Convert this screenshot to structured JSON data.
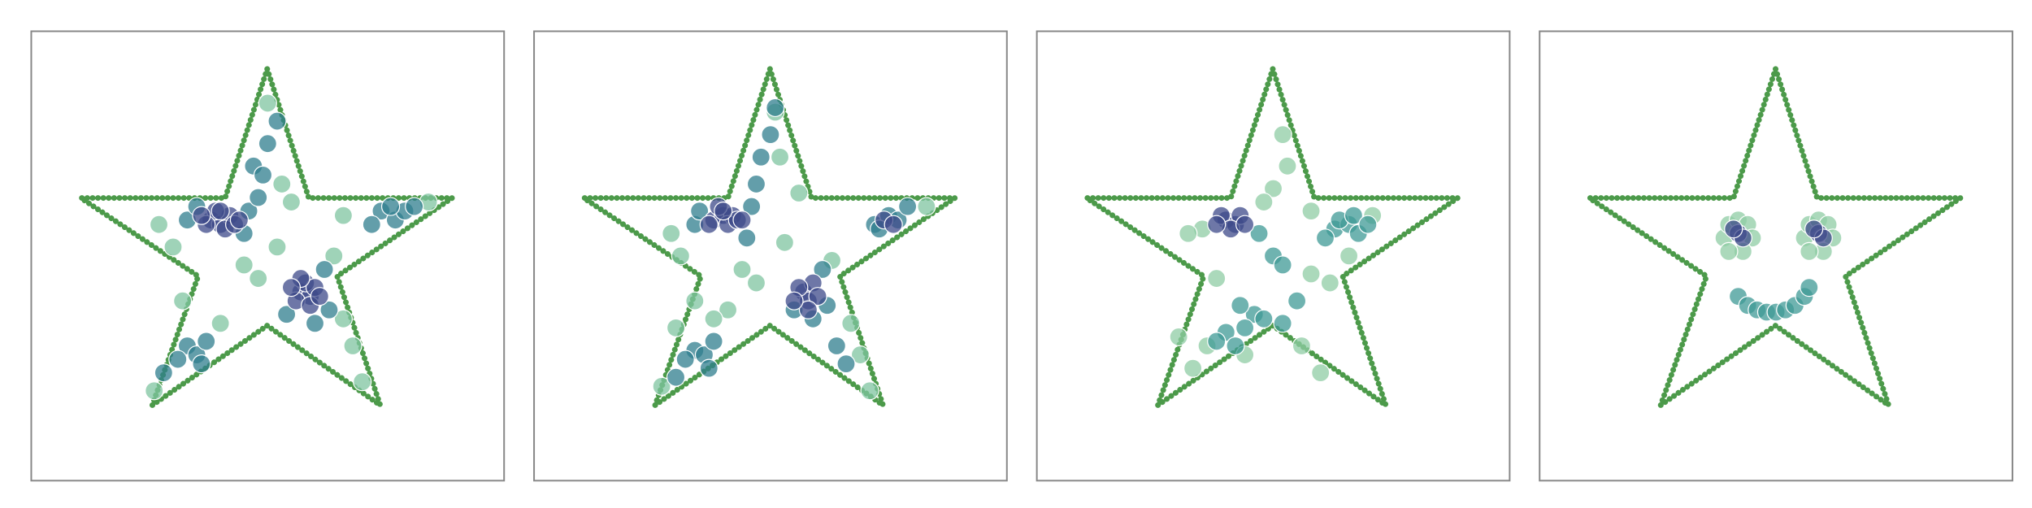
{
  "chart_data": [
    {
      "type": "scatter",
      "xlim": [
        0,
        100
      ],
      "ylim": [
        0,
        100
      ],
      "series": [
        {
          "type": "line",
          "color": "#4c9a4a",
          "x": [
            49.9,
            58.7,
            89.0,
            64.7,
            73.8,
            49.9,
            25.6,
            35.3,
            10.5,
            41.0,
            49.9
          ],
          "y": [
            91.6,
            62.9,
            62.9,
            45.5,
            16.8,
            34.5,
            16.8,
            45.5,
            62.9,
            62.9,
            91.6
          ]
        },
        {
          "color": "#7fc4a0",
          "x": [
            50,
            53,
            30,
            27,
            45,
            48,
            66,
            68,
            70,
            64,
            84,
            32,
            40,
            26,
            52,
            55,
            66
          ],
          "y": [
            84,
            66,
            52,
            57,
            48,
            45,
            36,
            30,
            22,
            50,
            62,
            40,
            35,
            20,
            52,
            62,
            59
          ]
        },
        {
          "color": "#2f7e8e",
          "x": [
            46,
            48,
            47,
            50,
            52,
            49,
            45,
            33,
            35,
            62,
            63,
            54,
            60,
            74,
            77,
            79,
            72,
            76,
            81,
            33,
            35,
            37,
            31,
            36,
            28
          ],
          "y": [
            60,
            63,
            70,
            75,
            80,
            68,
            55,
            58,
            61,
            47,
            38,
            37,
            35,
            60,
            58,
            60,
            57,
            61,
            61,
            30,
            28,
            31,
            27,
            26,
            24
          ]
        },
        {
          "color": "#3e4a89",
          "x": [
            38,
            40,
            42,
            39,
            41,
            43,
            37,
            40,
            44,
            36,
            57,
            59,
            58,
            60,
            56,
            59,
            61,
            57,
            55
          ],
          "y": [
            58,
            57,
            59,
            60,
            56,
            57,
            57,
            60,
            58,
            59,
            42,
            41,
            44,
            43,
            40,
            39,
            41,
            45,
            43
          ]
        }
      ]
    },
    {
      "type": "scatter",
      "xlim": [
        0,
        100
      ],
      "ylim": [
        0,
        100
      ],
      "series": [
        {
          "type": "line",
          "color": "#4c9a4a",
          "x": [
            49.9,
            58.7,
            89.0,
            64.7,
            73.8,
            49.9,
            25.6,
            35.3,
            10.5,
            41.0,
            49.9
          ],
          "y": [
            91.6,
            62.9,
            62.9,
            45.5,
            16.8,
            34.5,
            16.8,
            45.5,
            62.9,
            62.9,
            91.6
          ]
        },
        {
          "color": "#7fc4a0",
          "x": [
            51,
            52,
            29,
            31,
            44,
            47,
            67,
            69,
            71,
            63,
            83,
            34,
            41,
            27,
            53,
            56,
            38,
            30
          ],
          "y": [
            82,
            72,
            55,
            50,
            47,
            44,
            35,
            28,
            20,
            49,
            61,
            40,
            38,
            21,
            53,
            64,
            36,
            34
          ]
        },
        {
          "color": "#2f7e8e",
          "x": [
            46,
            47,
            48,
            50,
            51,
            45,
            34,
            35,
            61,
            62,
            55,
            59,
            72,
            75,
            77,
            73,
            79,
            34,
            36,
            38,
            32,
            37,
            30,
            64,
            66
          ],
          "y": [
            61,
            66,
            72,
            77,
            83,
            54,
            57,
            60,
            47,
            39,
            38,
            36,
            57,
            59,
            58,
            56,
            61,
            29,
            28,
            31,
            27,
            25,
            23,
            30,
            26
          ]
        },
        {
          "color": "#3e4a89",
          "x": [
            38,
            40,
            42,
            39,
            41,
            43,
            37,
            40,
            44,
            57,
            58,
            59,
            56,
            60,
            58,
            55,
            74,
            76
          ],
          "y": [
            58,
            59,
            59,
            61,
            57,
            58,
            57,
            60,
            58,
            42,
            40,
            44,
            43,
            41,
            38,
            40,
            58,
            57
          ]
        }
      ]
    },
    {
      "type": "scatter",
      "xlim": [
        0,
        100
      ],
      "ylim": [
        0,
        100
      ],
      "series": [
        {
          "type": "line",
          "color": "#4c9a4a",
          "x": [
            49.9,
            58.7,
            89.0,
            64.7,
            73.8,
            49.9,
            25.6,
            35.3,
            10.5,
            41.0,
            49.9
          ],
          "y": [
            91.6,
            62.9,
            62.9,
            45.5,
            16.8,
            34.5,
            16.8,
            45.5,
            62.9,
            62.9,
            91.6
          ]
        },
        {
          "color": "#8fcca4",
          "x": [
            50,
            53,
            48,
            58,
            35,
            32,
            36,
            33,
            58,
            62,
            56,
            60,
            71,
            38,
            52,
            44,
            66,
            30
          ],
          "y": [
            65,
            70,
            62,
            60,
            56,
            55,
            30,
            25,
            46,
            44,
            30,
            24,
            59,
            45,
            77,
            28,
            50,
            32
          ]
        },
        {
          "color": "#3f9a96",
          "x": [
            63,
            66,
            68,
            64,
            61,
            67,
            47,
            50,
            52,
            46,
            44,
            48,
            40,
            52,
            55,
            43,
            70,
            38,
            42
          ],
          "y": [
            56,
            57,
            55,
            58,
            54,
            59,
            55,
            50,
            48,
            37,
            34,
            36,
            33,
            35,
            40,
            39,
            57,
            31,
            30
          ]
        },
        {
          "color": "#3e4a89",
          "x": [
            40,
            42,
            39,
            43,
            41,
            38,
            44
          ],
          "y": [
            58,
            57,
            59,
            59,
            56,
            57,
            57
          ]
        }
      ]
    },
    {
      "type": "scatter",
      "xlim": [
        0,
        100
      ],
      "ylim": [
        0,
        100
      ],
      "series": [
        {
          "type": "line",
          "color": "#4c9a4a",
          "x": [
            49.9,
            58.7,
            89.0,
            64.7,
            73.8,
            49.9,
            25.6,
            35.3,
            10.5,
            41.0,
            49.9
          ],
          "y": [
            91.6,
            62.9,
            62.9,
            45.5,
            16.8,
            34.5,
            16.8,
            45.5,
            62.9,
            62.9,
            91.6
          ]
        },
        {
          "color": "#8fcca4",
          "x": [
            39,
            40,
            42,
            44,
            45,
            43,
            40,
            56,
            57,
            59,
            61,
            62,
            60,
            57
          ],
          "y": [
            54,
            57,
            58,
            57,
            54,
            51,
            51,
            54,
            57,
            58,
            57,
            54,
            51,
            51
          ]
        },
        {
          "color": "#3f9a96",
          "x": [
            42,
            44,
            46,
            48,
            50,
            52,
            54,
            56,
            57
          ],
          "y": [
            41,
            39,
            38,
            37.5,
            37.5,
            38,
            39,
            41,
            43
          ]
        },
        {
          "color": "#3e4a89",
          "x": [
            42,
            43,
            41,
            59,
            60,
            58
          ],
          "y": [
            55,
            54,
            56,
            55,
            54,
            56
          ]
        }
      ]
    }
  ]
}
